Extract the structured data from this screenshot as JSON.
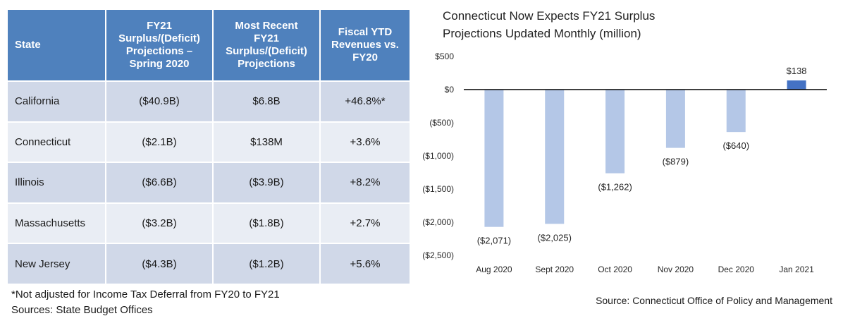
{
  "table": {
    "headers": [
      [
        "State"
      ],
      [
        "FY21",
        "Surplus/(Deficit)",
        "Projections –",
        "Spring 2020"
      ],
      [
        "Most Recent",
        "FY21",
        "Surplus/(Deficit)",
        "Projections"
      ],
      [
        "Fiscal YTD",
        "Revenues vs.",
        "FY20"
      ]
    ],
    "rows": [
      [
        "California",
        "($40.9B)",
        "$6.8B",
        "+46.8%*"
      ],
      [
        "Connecticut",
        "($2.1B)",
        "$138M",
        "+3.6%"
      ],
      [
        "Illinois",
        "($6.6B)",
        "($3.9B)",
        "+8.2%"
      ],
      [
        "Massachusetts",
        "($3.2B)",
        "($1.8B)",
        "+2.7%"
      ],
      [
        "New Jersey",
        "($4.3B)",
        "($1.2B)",
        "+5.6%"
      ]
    ],
    "colors": {
      "header": "#4f81bd",
      "row_odd": "#d0d8e8",
      "row_even": "#e9edf4"
    }
  },
  "notes": {
    "footnote": "*Not adjusted for Income Tax Deferral from FY20 to FY21",
    "sources": "Sources: State Budget Offices"
  },
  "chart_data": {
    "type": "bar",
    "title": [
      "Connecticut Now Expects FY21 Surplus",
      "Projections Updated Monthly (million)"
    ],
    "categories": [
      "Aug 2020",
      "Sept 2020",
      "Oct 2020",
      "Nov 2020",
      "Dec 2020",
      "Jan 2021"
    ],
    "values": [
      -2071,
      -2025,
      -1262,
      -879,
      -640,
      138
    ],
    "data_labels": [
      "($2,071)",
      "($2,025)",
      "($1,262)",
      "($879)",
      "($640)",
      "$138"
    ],
    "ylim": [
      -2500,
      500
    ],
    "yticks": [
      500,
      0,
      -500,
      -1000,
      -1500,
      -2000,
      -2500
    ],
    "ytick_labels": [
      "$500",
      "$0",
      "($500)",
      "($1,000)",
      "($1,500)",
      "($2,000)",
      "($2,500)"
    ],
    "grid": false,
    "colors": {
      "negative": "#b4c7e7",
      "positive": "#4472c4",
      "zero_line": "#000000"
    },
    "source": "Source: Connecticut Office of Policy and Management"
  }
}
